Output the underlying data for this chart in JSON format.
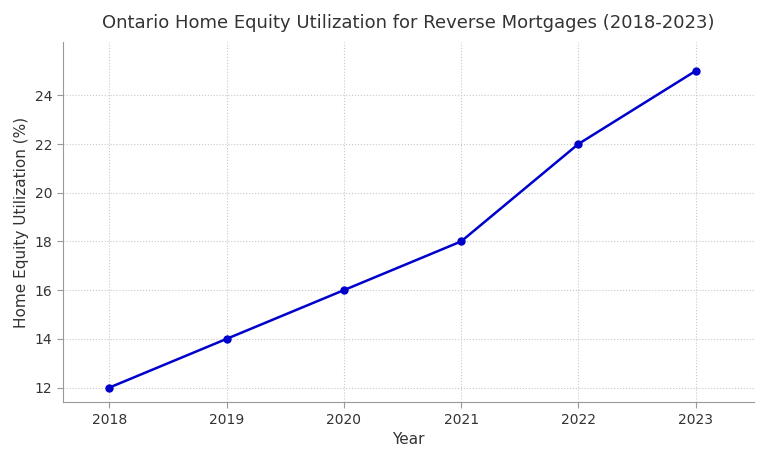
{
  "title": "Ontario Home Equity Utilization for Reverse Mortgages (2018-2023)",
  "xlabel": "Year",
  "ylabel": "Home Equity Utilization (%)",
  "x": [
    2018,
    2019,
    2020,
    2021,
    2022,
    2023
  ],
  "y": [
    12.0,
    14.0,
    16.0,
    18.0,
    22.0,
    25.0
  ],
  "line_color": "#0000CC",
  "marker": "o",
  "marker_color": "#0000CC",
  "marker_size": 5,
  "line_width": 1.8,
  "xlim": [
    2017.6,
    2023.5
  ],
  "ylim": [
    11.4,
    26.2
  ],
  "yticks": [
    12,
    14,
    16,
    18,
    20,
    22,
    24
  ],
  "xticks": [
    2018,
    2019,
    2020,
    2021,
    2022,
    2023
  ],
  "grid_color": "#c8c8c8",
  "grid_linestyle": ":",
  "grid_alpha": 1.0,
  "background_color": "#ffffff",
  "title_fontsize": 13,
  "label_fontsize": 11,
  "tick_fontsize": 10
}
